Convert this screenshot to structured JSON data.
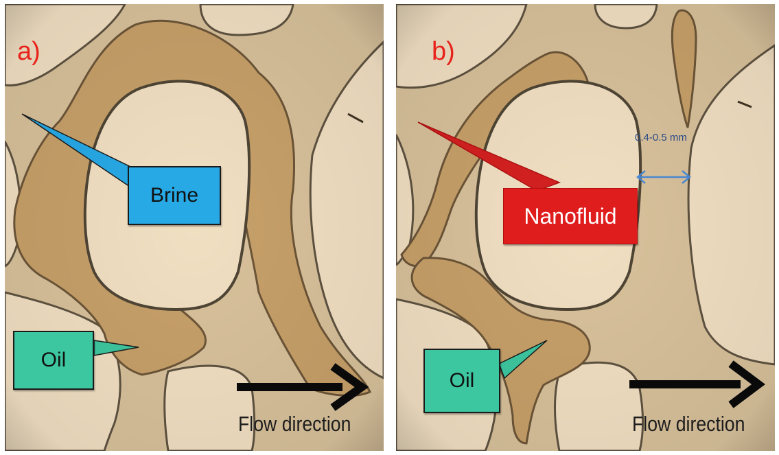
{
  "panels": [
    {
      "letter": "a)",
      "callouts": {
        "fluid": "Brine",
        "oil": "Oil"
      },
      "flow_label": "Flow direction"
    },
    {
      "letter": "b)",
      "callouts": {
        "fluid": "Nanofluid",
        "oil": "Oil"
      },
      "flow_label": "Flow direction",
      "scale_label": "0.4-0.5 mm"
    }
  ],
  "colors": {
    "panel_letter": "#e8231c",
    "brine_callout": "#27a9e6",
    "oil_callout": "#3dc7a0",
    "nanofluid_callout": "#e01d1d",
    "scale_arrow": "#4a8ad6",
    "oil_phase": "#c9a26c",
    "grain": "#f3e2c6",
    "pore_space": "#d9c39e"
  },
  "icons": [
    "flow-arrow-icon",
    "double-headed-scale-arrow-icon"
  ]
}
